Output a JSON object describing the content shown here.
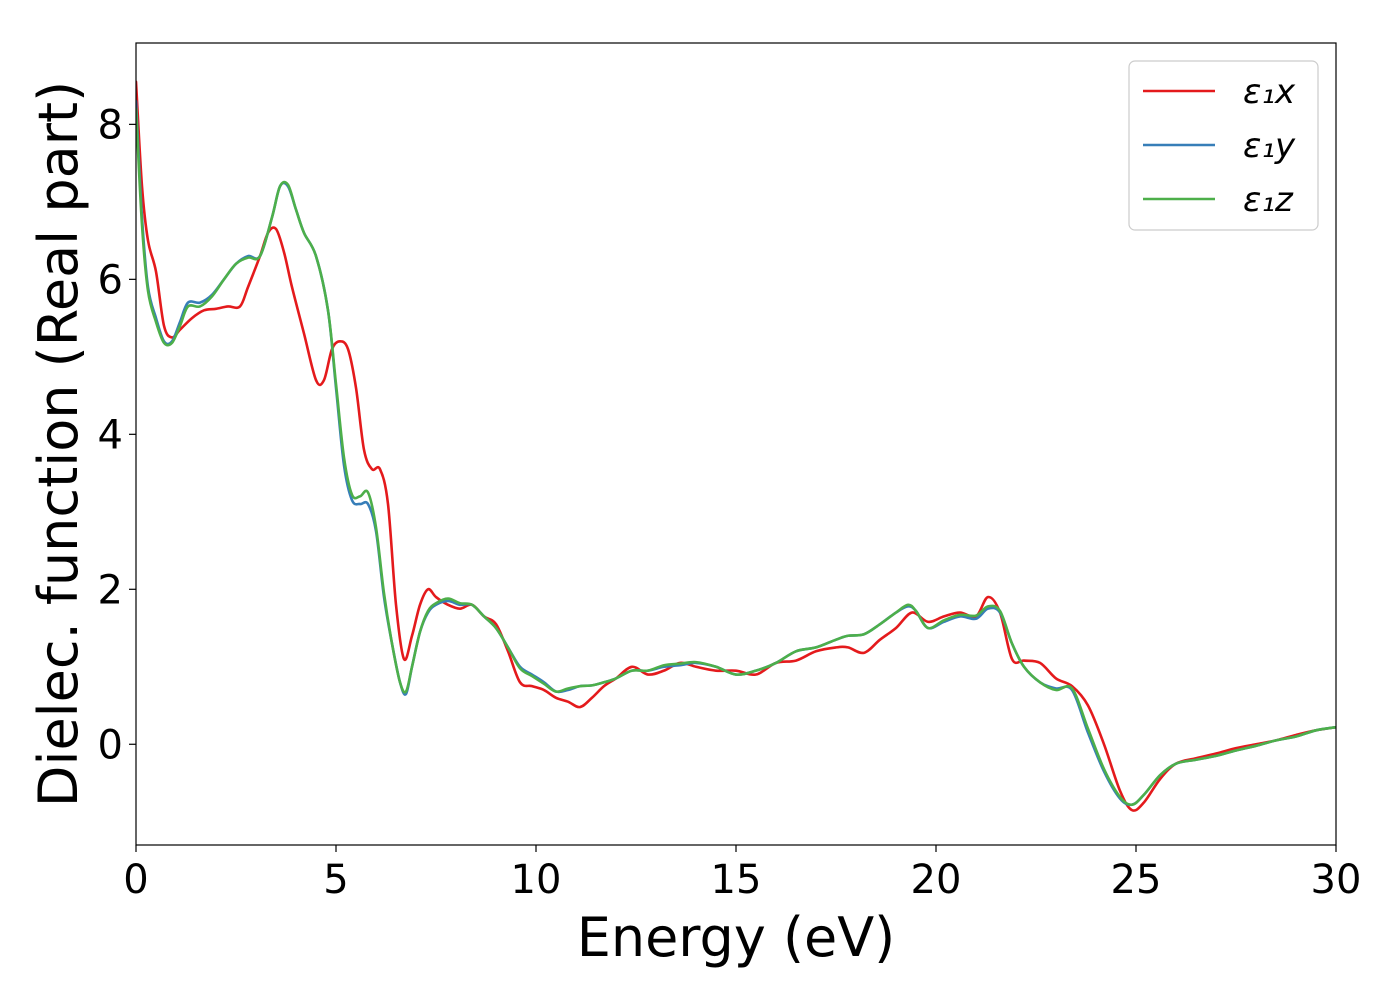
{
  "chart_data": {
    "type": "line",
    "xlabel": "Energy (eV)",
    "ylabel": "Dielec. function (Real part)",
    "xlim": [
      0,
      30
    ],
    "ylim": [
      -1.3,
      9.05
    ],
    "xticks": [
      0,
      5,
      10,
      15,
      20,
      25,
      30
    ],
    "yticks": [
      0,
      2,
      4,
      6,
      8
    ],
    "grid": false,
    "legend_position": "top-right",
    "series": [
      {
        "name": "ε₁x",
        "color": "#e41a1c",
        "x": [
          0,
          0.15,
          0.3,
          0.5,
          0.7,
          0.9,
          1.1,
          1.4,
          1.7,
          2.0,
          2.3,
          2.6,
          2.8,
          3.1,
          3.3,
          3.5,
          3.7,
          3.9,
          4.2,
          4.5,
          4.7,
          4.9,
          5.1,
          5.3,
          5.5,
          5.7,
          5.9,
          6.1,
          6.3,
          6.5,
          6.7,
          6.9,
          7.1,
          7.3,
          7.5,
          7.8,
          8.1,
          8.4,
          8.7,
          9.0,
          9.3,
          9.6,
          9.9,
          10.2,
          10.5,
          10.8,
          11.1,
          11.4,
          11.7,
          12.0,
          12.4,
          12.8,
          13.2,
          13.6,
          14.0,
          14.5,
          15.0,
          15.5,
          16.0,
          16.5,
          17.0,
          17.5,
          17.8,
          18.2,
          18.6,
          19.0,
          19.4,
          19.8,
          20.2,
          20.6,
          21.0,
          21.3,
          21.6,
          21.9,
          22.2,
          22.6,
          23.0,
          23.4,
          23.8,
          24.2,
          24.6,
          24.9,
          25.2,
          25.6,
          26.0,
          26.5,
          27.0,
          27.5,
          28.0,
          28.5,
          29.0,
          29.5,
          30.0
        ],
        "y": [
          8.55,
          7.2,
          6.5,
          6.1,
          5.4,
          5.25,
          5.35,
          5.5,
          5.6,
          5.62,
          5.65,
          5.65,
          5.9,
          6.3,
          6.6,
          6.65,
          6.35,
          5.9,
          5.3,
          4.7,
          4.7,
          5.1,
          5.2,
          5.1,
          4.6,
          3.8,
          3.55,
          3.55,
          3.1,
          1.8,
          1.1,
          1.4,
          1.8,
          2.0,
          1.9,
          1.8,
          1.75,
          1.8,
          1.65,
          1.55,
          1.2,
          0.8,
          0.75,
          0.7,
          0.6,
          0.55,
          0.48,
          0.6,
          0.75,
          0.85,
          1.0,
          0.9,
          0.95,
          1.05,
          1.0,
          0.95,
          0.95,
          0.9,
          1.05,
          1.08,
          1.2,
          1.25,
          1.25,
          1.18,
          1.35,
          1.5,
          1.7,
          1.58,
          1.65,
          1.7,
          1.65,
          1.9,
          1.7,
          1.1,
          1.08,
          1.05,
          0.85,
          0.75,
          0.5,
          0.0,
          -0.6,
          -0.85,
          -0.75,
          -0.45,
          -0.25,
          -0.18,
          -0.12,
          -0.05,
          0.0,
          0.05,
          0.12,
          0.18,
          0.22
        ]
      },
      {
        "name": "ε₁y",
        "color": "#377eb8",
        "x": [
          0,
          0.15,
          0.3,
          0.5,
          0.7,
          0.9,
          1.1,
          1.3,
          1.6,
          1.9,
          2.2,
          2.5,
          2.8,
          3.1,
          3.4,
          3.6,
          3.8,
          4.0,
          4.2,
          4.5,
          4.8,
          5.0,
          5.2,
          5.4,
          5.6,
          5.8,
          6.0,
          6.2,
          6.4,
          6.6,
          6.75,
          6.9,
          7.1,
          7.3,
          7.5,
          7.8,
          8.1,
          8.4,
          8.7,
          9.0,
          9.3,
          9.6,
          9.9,
          10.2,
          10.5,
          10.8,
          11.1,
          11.4,
          11.7,
          12.0,
          12.4,
          12.8,
          13.2,
          13.6,
          14.0,
          14.5,
          15.0,
          15.5,
          16.0,
          16.5,
          17.0,
          17.5,
          17.8,
          18.2,
          18.6,
          19.0,
          19.3,
          19.5,
          19.8,
          20.2,
          20.6,
          21.0,
          21.3,
          21.6,
          21.9,
          22.2,
          22.6,
          23.0,
          23.4,
          23.8,
          24.2,
          24.6,
          24.9,
          25.2,
          25.6,
          26.0,
          26.5,
          27.0,
          27.5,
          28.0,
          28.5,
          29.0,
          29.5,
          30.0
        ],
        "y": [
          8.3,
          6.8,
          5.9,
          5.5,
          5.2,
          5.2,
          5.45,
          5.7,
          5.7,
          5.8,
          6.0,
          6.2,
          6.3,
          6.3,
          6.8,
          7.2,
          7.2,
          6.9,
          6.6,
          6.3,
          5.6,
          4.6,
          3.6,
          3.15,
          3.1,
          3.1,
          2.75,
          1.9,
          1.3,
          0.8,
          0.65,
          1.0,
          1.45,
          1.7,
          1.8,
          1.85,
          1.8,
          1.8,
          1.65,
          1.5,
          1.25,
          1.0,
          0.9,
          0.8,
          0.68,
          0.7,
          0.75,
          0.76,
          0.8,
          0.85,
          0.95,
          0.95,
          1.0,
          1.02,
          1.05,
          1.0,
          0.9,
          0.95,
          1.05,
          1.2,
          1.25,
          1.35,
          1.4,
          1.42,
          1.55,
          1.7,
          1.78,
          1.72,
          1.5,
          1.58,
          1.65,
          1.62,
          1.75,
          1.7,
          1.3,
          1.0,
          0.8,
          0.72,
          0.7,
          0.15,
          -0.35,
          -0.7,
          -0.78,
          -0.65,
          -0.4,
          -0.25,
          -0.2,
          -0.15,
          -0.08,
          -0.02,
          0.05,
          0.1,
          0.18,
          0.22
        ]
      },
      {
        "name": "ε₁z",
        "color": "#4daf4a",
        "x": [
          0,
          0.15,
          0.3,
          0.5,
          0.7,
          0.9,
          1.1,
          1.3,
          1.6,
          1.9,
          2.2,
          2.5,
          2.8,
          3.1,
          3.4,
          3.6,
          3.8,
          4.0,
          4.2,
          4.5,
          4.8,
          5.0,
          5.2,
          5.4,
          5.6,
          5.8,
          6.0,
          6.2,
          6.4,
          6.6,
          6.75,
          6.9,
          7.1,
          7.3,
          7.5,
          7.8,
          8.1,
          8.4,
          8.7,
          9.0,
          9.3,
          9.6,
          9.9,
          10.2,
          10.5,
          10.8,
          11.1,
          11.4,
          11.7,
          12.0,
          12.4,
          12.8,
          13.2,
          13.6,
          14.0,
          14.5,
          15.0,
          15.5,
          16.0,
          16.5,
          17.0,
          17.5,
          17.8,
          18.2,
          18.6,
          19.0,
          19.3,
          19.5,
          19.8,
          20.2,
          20.6,
          21.0,
          21.3,
          21.6,
          21.9,
          22.2,
          22.6,
          23.0,
          23.4,
          23.8,
          24.2,
          24.6,
          24.9,
          25.2,
          25.6,
          26.0,
          26.5,
          27.0,
          27.5,
          28.0,
          28.5,
          29.0,
          29.5,
          30.0
        ],
        "y": [
          8.2,
          6.7,
          5.85,
          5.45,
          5.18,
          5.18,
          5.4,
          5.65,
          5.65,
          5.78,
          6.0,
          6.2,
          6.28,
          6.3,
          6.8,
          7.2,
          7.22,
          6.9,
          6.6,
          6.3,
          5.6,
          4.65,
          3.7,
          3.22,
          3.2,
          3.25,
          2.8,
          1.95,
          1.3,
          0.8,
          0.68,
          1.0,
          1.45,
          1.72,
          1.82,
          1.88,
          1.82,
          1.8,
          1.65,
          1.5,
          1.25,
          0.98,
          0.88,
          0.78,
          0.68,
          0.72,
          0.75,
          0.76,
          0.8,
          0.85,
          0.95,
          0.95,
          1.02,
          1.04,
          1.06,
          1.0,
          0.9,
          0.95,
          1.05,
          1.2,
          1.25,
          1.35,
          1.4,
          1.42,
          1.55,
          1.7,
          1.8,
          1.72,
          1.5,
          1.6,
          1.67,
          1.66,
          1.78,
          1.72,
          1.3,
          1.0,
          0.8,
          0.7,
          0.72,
          0.2,
          -0.32,
          -0.68,
          -0.78,
          -0.65,
          -0.4,
          -0.25,
          -0.2,
          -0.15,
          -0.08,
          -0.02,
          0.05,
          0.1,
          0.18,
          0.22
        ]
      }
    ]
  }
}
